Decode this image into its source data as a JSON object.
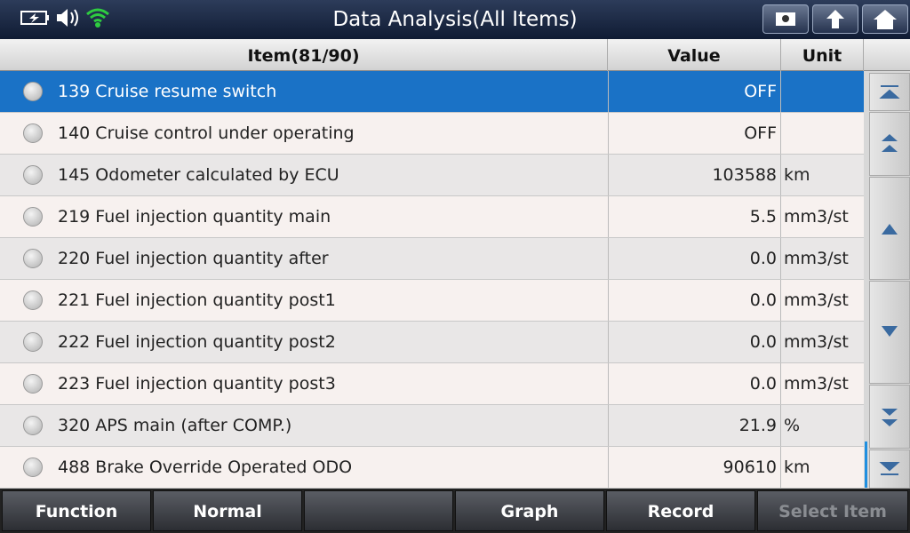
{
  "header": {
    "title": "Data Analysis(All Items)"
  },
  "table": {
    "columns": [
      "Item(81/90)",
      "Value",
      "Unit"
    ],
    "rows": [
      {
        "item": "139 Cruise resume switch",
        "value": "OFF"
      },
      {
        "item": "140 Cruise control under operating",
        "value": "OFF"
      },
      {
        "item": "145 Odometer calculated by ECU",
        "value": "103588",
        "unit": "km"
      },
      {
        "item": "219 Fuel injection quantity main",
        "value": "5.5",
        "unit": "mm3/st"
      },
      {
        "item": "220 Fuel injection quantity after",
        "value": "0.0",
        "unit": "mm3/st"
      },
      {
        "item": "221 Fuel injection quantity post1",
        "value": "0.0",
        "unit": "mm3/st"
      },
      {
        "item": "222 Fuel injection quantity post2",
        "value": "0.0",
        "unit": "mm3/st"
      },
      {
        "item": "223 Fuel injection quantity post3",
        "value": "0.0",
        "unit": "mm3/st"
      },
      {
        "item": "320 APS main (after COMP.)",
        "value": "21.9",
        "unit": "%"
      },
      {
        "item": "488 Brake Override Operated ODO",
        "value": "90610",
        "unit": "km"
      }
    ]
  },
  "footer": {
    "buttons": [
      "Function",
      "Normal",
      "Graph",
      "Record",
      "Select Item"
    ]
  }
}
